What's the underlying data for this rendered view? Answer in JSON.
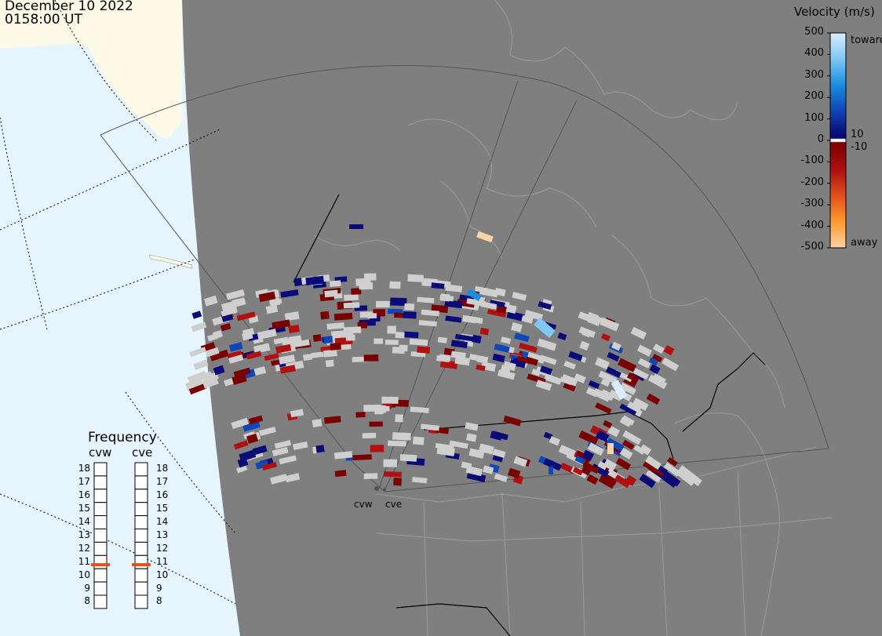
{
  "header": {
    "date": "December 10 2022",
    "time": "0158:00 UT"
  },
  "legend": {
    "title": "Velocity (m/s)",
    "ticks": [
      "500",
      "400",
      "300",
      "200",
      "100",
      "0",
      "-100",
      "-200",
      "-300",
      "-400",
      "-500"
    ],
    "toward_label": "toward",
    "away_label": "away",
    "positive_threshold": "10",
    "negative_threshold": "-10"
  },
  "frequency": {
    "title": "Frequency",
    "radar_labels": [
      "cvw",
      "cve"
    ],
    "scale": [
      "18",
      "17",
      "16",
      "15",
      "14",
      "13",
      "12",
      "11",
      "10",
      "9",
      "8"
    ],
    "cvw_mhz": 10.8,
    "cve_mhz": 10.8,
    "marker_color": "#e0521c"
  },
  "sites": {
    "cvw": "cvw",
    "cve": "cve"
  },
  "colors": {
    "night_side": "#7f7f7f",
    "ocean_day": "#e6f5ff",
    "land_day": "#fcfae6",
    "ground_scatter": "#cfcfcf",
    "toward": [
      "#0a0a78",
      "#1047b8",
      "#1c8ee0",
      "#7fc8f5",
      "#d8eefc"
    ],
    "away": [
      "#7a0000",
      "#b01010",
      "#e0521c",
      "#ff9a2e",
      "#ffd3a8"
    ]
  }
}
